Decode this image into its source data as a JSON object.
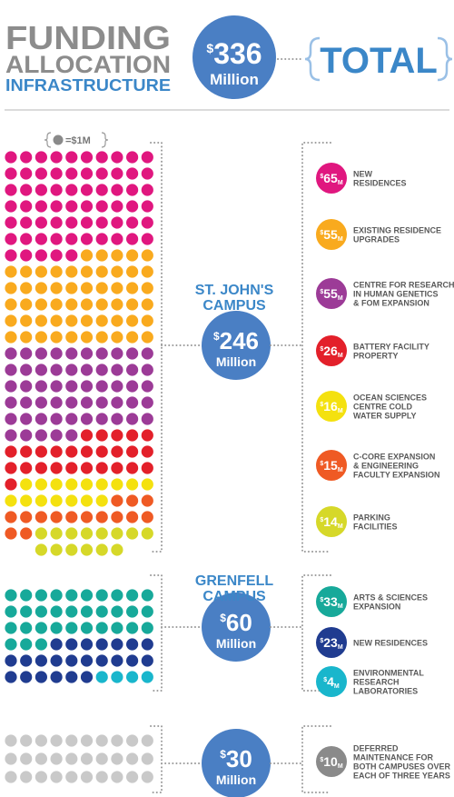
{
  "chart_data": {
    "type": "waffle",
    "title_lines": [
      "FUNDING",
      "ALLOCATION",
      "INFRASTRUCTURE"
    ],
    "currency": "$",
    "unit": "Million",
    "item_unit": "M",
    "total": {
      "value": 336,
      "label": "TOTAL"
    },
    "legend": {
      "value": 1,
      "label": "=$1M",
      "color": "#8a8a8a"
    },
    "groups": [
      {
        "name_lines": [
          "ST. JOHN'S",
          "CAMPUS"
        ],
        "value": 246,
        "items": [
          {
            "value": 65,
            "color": "#e0177f",
            "label_lines": [
              "NEW",
              "RESIDENCES"
            ]
          },
          {
            "value": 55,
            "color": "#f9aa1e",
            "label_lines": [
              "EXISTING RESIDENCE",
              "UPGRADES"
            ]
          },
          {
            "value": 55,
            "color": "#9c3b97",
            "label_lines": [
              "CENTRE FOR RESEARCH",
              "IN HUMAN GENETICS",
              "& FOM EXPANSION"
            ]
          },
          {
            "value": 26,
            "color": "#e3202a",
            "label_lines": [
              "BATTERY FACILITY",
              "PROPERTY"
            ]
          },
          {
            "value": 16,
            "color": "#f4e10f",
            "label_lines": [
              "OCEAN SCIENCES",
              "CENTRE COLD",
              "WATER SUPPLY"
            ]
          },
          {
            "value": 15,
            "color": "#ef5a24",
            "label_lines": [
              "C-CORE EXPANSION",
              "& ENGINEERING",
              "FACULTY EXPANSION"
            ]
          },
          {
            "value": 14,
            "color": "#d6d829",
            "label_lines": [
              "PARKING",
              "FACILITIES"
            ]
          }
        ]
      },
      {
        "name_lines": [
          "GRENFELL",
          "CAMPUS"
        ],
        "value": 60,
        "items": [
          {
            "value": 33,
            "color": "#17a99a",
            "label_lines": [
              "ARTS & SCIENCES",
              "EXPANSION"
            ]
          },
          {
            "value": 23,
            "color": "#203c90",
            "label_lines": [
              "NEW RESIDENCES"
            ]
          },
          {
            "value": 4,
            "color": "#19b6cc",
            "label_lines": [
              "ENVIRONMENTAL",
              "RESEARCH",
              "LABORATORIES"
            ]
          }
        ]
      },
      {
        "value": 30,
        "dot_color": "#c9c9c9",
        "items": [
          {
            "value": 10,
            "color": "#8a8a8a",
            "label_lines": [
              "DEFERRED",
              "MAINTENANCE FOR",
              "BOTH CAMPUSES OVER",
              "EACH OF THREE YEARS"
            ]
          }
        ]
      }
    ]
  }
}
